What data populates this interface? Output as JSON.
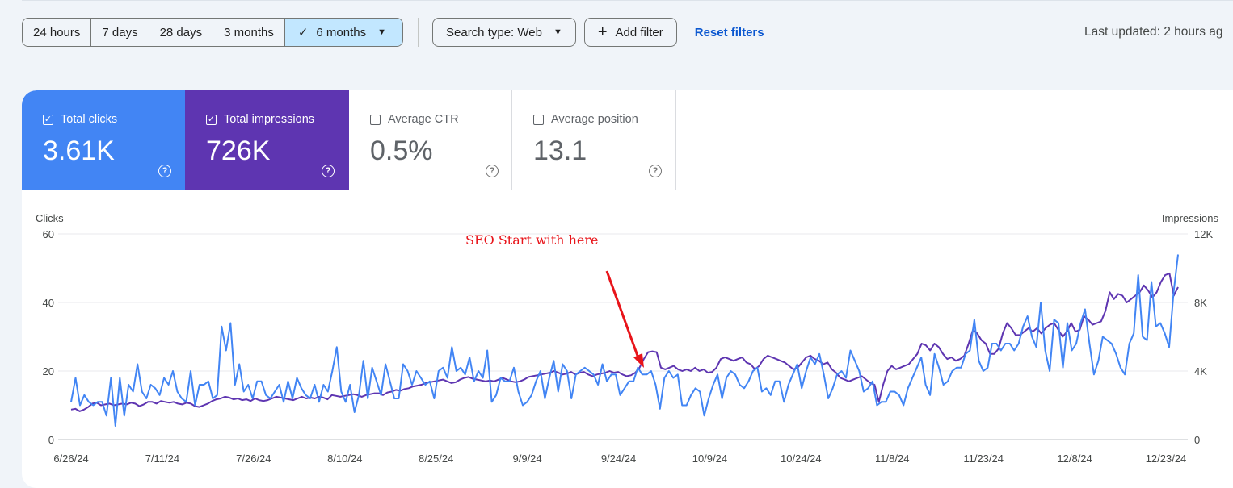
{
  "filters": {
    "ranges": [
      "24 hours",
      "7 days",
      "28 days",
      "3 months",
      "6 months"
    ],
    "search_type": "Search type: Web",
    "add_filter": "Add filter",
    "reset": "Reset filters",
    "last_updated": "Last updated: 2 hours ag"
  },
  "metrics": [
    {
      "label": "Total clicks",
      "value": "3.61K",
      "checked": true
    },
    {
      "label": "Total impressions",
      "value": "726K",
      "checked": true
    },
    {
      "label": "Average CTR",
      "value": "0.5%",
      "checked": false
    },
    {
      "label": "Average position",
      "value": "13.1",
      "checked": false
    }
  ],
  "colors": {
    "clicks": "#4285f4",
    "impressions": "#5e35b1",
    "annotation": "#e8141a"
  },
  "chart_data": {
    "type": "line",
    "left_axis_label": "Clicks",
    "right_axis_label": "Impressions",
    "left_ticks": [
      "60",
      "40",
      "20",
      "0"
    ],
    "right_ticks": [
      "12K",
      "8K",
      "4K",
      "0"
    ],
    "ylim_left": [
      0,
      60
    ],
    "ylim_right": [
      0,
      12000
    ],
    "x_tick_labels": [
      "6/26/24",
      "7/11/24",
      "7/26/24",
      "8/10/24",
      "8/25/24",
      "9/9/24",
      "9/24/24",
      "10/9/24",
      "10/24/24",
      "11/8/24",
      "11/23/24",
      "12/8/24",
      "12/23/24"
    ],
    "x_start": "6/26/24",
    "x_end": "12/27/24",
    "annotation": "SEO Start with here",
    "annotation_date": "9/28/24",
    "series": [
      {
        "name": "Clicks",
        "axis": "left",
        "values": [
          11,
          18,
          10,
          13,
          11,
          10,
          11,
          11,
          7,
          18,
          4,
          18,
          7,
          16,
          14,
          22,
          14,
          12,
          16,
          15,
          13,
          18,
          16,
          20,
          14,
          12,
          11,
          20,
          10,
          16,
          16,
          17,
          12,
          13,
          33,
          26,
          34,
          16,
          22,
          14,
          16,
          12,
          17,
          17,
          13,
          12,
          14,
          16,
          11,
          17,
          12,
          18,
          15,
          13,
          12,
          16,
          11,
          16,
          14,
          20,
          27,
          14,
          11,
          16,
          8,
          13,
          23,
          12,
          21,
          17,
          13,
          22,
          17,
          12,
          12,
          22,
          20,
          16,
          20,
          18,
          16,
          17,
          12,
          20,
          21,
          18,
          27,
          20,
          21,
          19,
          24,
          17,
          20,
          18,
          26,
          11,
          13,
          18,
          17,
          17,
          21,
          14,
          10,
          11,
          13,
          17,
          20,
          12,
          18,
          23,
          14,
          22,
          20,
          12,
          19,
          20,
          21,
          20,
          19,
          16,
          22,
          17,
          19,
          19,
          13,
          15,
          17,
          17,
          21,
          19,
          19,
          20,
          16,
          9,
          18,
          20,
          18,
          19,
          10,
          10,
          13,
          15,
          14,
          7,
          12,
          16,
          19,
          12,
          18,
          20,
          19,
          16,
          15,
          17,
          20,
          21,
          14,
          15,
          13,
          17,
          17,
          11,
          16,
          19,
          22,
          15,
          20,
          24,
          22,
          25,
          19,
          12,
          15,
          19,
          20,
          18,
          26,
          23,
          20,
          14,
          15,
          17,
          10,
          11,
          11,
          14,
          14,
          13,
          10,
          15,
          18,
          21,
          24,
          16,
          13,
          25,
          21,
          16,
          17,
          20,
          21,
          21,
          25,
          26,
          35,
          23,
          20,
          21,
          28,
          28,
          26,
          28,
          28,
          26,
          28,
          33,
          36,
          30,
          27,
          40,
          26,
          20,
          35,
          34,
          21,
          34,
          26,
          28,
          34,
          38,
          28,
          19,
          23,
          30,
          29,
          28,
          25,
          21,
          19,
          28,
          31,
          48,
          30,
          29,
          46,
          33,
          34,
          31,
          27,
          43,
          54
        ]
      },
      {
        "name": "Impressions",
        "axis": "right",
        "values": [
          1750,
          1800,
          1650,
          1750,
          1900,
          2100,
          2150,
          2000,
          2050,
          2100,
          2000,
          2050,
          2100,
          2050,
          2150,
          2100,
          1950,
          2050,
          2200,
          2200,
          2100,
          2250,
          2200,
          2150,
          2200,
          2100,
          2050,
          2150,
          2100,
          1950,
          1900,
          2000,
          2100,
          2250,
          2350,
          2400,
          2500,
          2450,
          2350,
          2400,
          2300,
          2350,
          2250,
          2400,
          2300,
          2250,
          2300,
          2400,
          2500,
          2450,
          2400,
          2350,
          2300,
          2400,
          2500,
          2400,
          2450,
          2400,
          2500,
          2450,
          2350,
          2600,
          2550,
          2500,
          2550,
          2600,
          2650,
          2600,
          2500,
          2600,
          2650,
          2700,
          2700,
          2600,
          2750,
          2800,
          2900,
          2850,
          2950,
          3000,
          3100,
          3150,
          3200,
          3300,
          3350,
          3400,
          3450,
          3500,
          3400,
          3300,
          3350,
          3500,
          3600,
          3650,
          3550,
          3500,
          3450,
          3400,
          3450,
          3400,
          3500,
          3600,
          3500,
          3400,
          3350,
          3400,
          3500,
          3650,
          3700,
          3750,
          3800,
          3850,
          3900,
          4000,
          3900,
          3800,
          3850,
          3950,
          3800,
          3900,
          3950,
          3800,
          3700,
          3800,
          3850,
          3900,
          4000,
          3900,
          3950,
          3800,
          3700,
          3750,
          3900,
          4200,
          4700,
          5100,
          5150,
          5100,
          4200,
          4100,
          4200,
          4300,
          4100,
          4000,
          4100,
          4000,
          4200,
          4000,
          4100,
          3900,
          3950,
          4200,
          4700,
          4800,
          4700,
          4600,
          4700,
          4800,
          4500,
          4400,
          4100,
          4300,
          4700,
          4900,
          4800,
          4700,
          4600,
          4500,
          4300,
          4100,
          4200,
          4500,
          4800,
          4900,
          4700,
          4600,
          4400,
          4500,
          4100,
          3900,
          3600,
          3500,
          3400,
          3500,
          3600,
          3700,
          3500,
          3300,
          3200,
          2200,
          3200,
          4000,
          4300,
          4100,
          4200,
          4300,
          4400,
          4700,
          5000,
          5600,
          5500,
          5200,
          5600,
          5400,
          5000,
          4700,
          4800,
          4600,
          4700,
          4900,
          5600,
          6400,
          6200,
          5800,
          5600,
          5000,
          5000,
          5300,
          6200,
          6800,
          6500,
          6100,
          6100,
          6300,
          6500,
          6300,
          6500,
          6200,
          6500,
          6700,
          6800,
          6400,
          6000,
          6300,
          6800,
          6300,
          6400,
          7200,
          7000,
          6700,
          6800,
          6900,
          7500,
          8600,
          8200,
          8500,
          8400,
          8000,
          8200,
          8400,
          8600,
          9000,
          8700,
          8300,
          8600,
          9200,
          9600,
          9700,
          8400,
          8900
        ]
      }
    ]
  }
}
